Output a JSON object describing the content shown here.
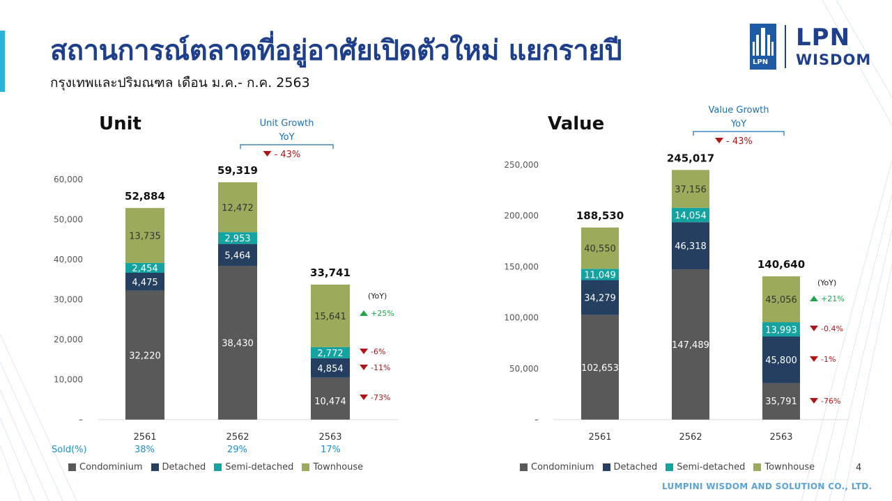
{
  "page": {
    "title": "สถานการณ์ตลาดที่อยู่อาศัยเปิดตัวใหม่ แยกรายปี",
    "subtitle": "กรุงเทพและปริมณฑล เดือน ม.ค.- ก.ค. 2563",
    "logo_tag": "LPN",
    "logo_main": "LPN",
    "logo_sub": "WISDOM",
    "footer": "LUMPINI WISDOM AND SOLUTION CO., LTD.",
    "page_number": "4",
    "sold_label": "Sold(%)",
    "sold_values": [
      "38%",
      "29%",
      "17%"
    ]
  },
  "colors": {
    "Condominium": "#595959",
    "Detached": "#243f60",
    "Semi-detached": "#13a3a0",
    "Townhouse": "#9bab5b",
    "up": "#1fa64a",
    "down": "#b01515",
    "title": "#1e3f8c",
    "growth": "#1a6fb5"
  },
  "chart_data": [
    {
      "type": "bar",
      "stacked": true,
      "title": "Unit",
      "categories": [
        "2561",
        "2562",
        "2563"
      ],
      "series": [
        {
          "name": "Condominium",
          "values": [
            32220,
            38430,
            10474
          ]
        },
        {
          "name": "Detached",
          "values": [
            4475,
            5464,
            4854
          ]
        },
        {
          "name": "Semi-detached",
          "values": [
            2454,
            2953,
            2772
          ]
        },
        {
          "name": "Townhouse",
          "values": [
            13735,
            12472,
            15641
          ]
        }
      ],
      "value_labels": [
        [
          "32,220",
          "4,475",
          "2,454",
          "13,735"
        ],
        [
          "38,430",
          "5,464",
          "2,953",
          "12,472"
        ],
        [
          "10,474",
          "4,854",
          "2,772",
          "15,641"
        ]
      ],
      "totals": [
        "52,884",
        "59,319",
        "33,741"
      ],
      "ylim": [
        0,
        60000
      ],
      "yticks": [
        "–",
        "10,000",
        "20,000",
        "30,000",
        "40,000",
        "50,000",
        "60,000"
      ],
      "growth_title": "Unit Growth",
      "growth_sub": "YoY",
      "growth_value": "- 43%",
      "yoy_header": "(YoY)",
      "yoy": [
        {
          "series": "Townhouse",
          "text": "+25%",
          "dir": "up"
        },
        {
          "series": "Semi-detached",
          "text": "-6%",
          "dir": "down"
        },
        {
          "series": "Detached",
          "text": "-11%",
          "dir": "down"
        },
        {
          "series": "Condominium",
          "text": "-73%",
          "dir": "down"
        }
      ],
      "legend": [
        "Condominium",
        "Detached",
        "Semi-detached",
        "Townhouse"
      ],
      "legend_position": "bottom",
      "grid": false
    },
    {
      "type": "bar",
      "stacked": true,
      "title": "Value",
      "categories": [
        "2561",
        "2562",
        "2563"
      ],
      "series": [
        {
          "name": "Condominium",
          "values": [
            102653,
            147489,
            35791
          ]
        },
        {
          "name": "Detached",
          "values": [
            34279,
            46318,
            45800
          ]
        },
        {
          "name": "Semi-detached",
          "values": [
            11049,
            14054,
            13993
          ]
        },
        {
          "name": "Townhouse",
          "values": [
            40550,
            37156,
            45056
          ]
        }
      ],
      "value_labels": [
        [
          "102,653",
          "34,279",
          "11,049",
          "40,550"
        ],
        [
          "147,489",
          "46,318",
          "14,054",
          "37,156"
        ],
        [
          "35,791",
          "45,800",
          "13,993",
          "45,056"
        ]
      ],
      "totals": [
        "188,530",
        "245,017",
        "140,640"
      ],
      "ylim": [
        0,
        250000
      ],
      "yticks": [
        "–",
        "50,000",
        "100,000",
        "150,000",
        "200,000",
        "250,000"
      ],
      "growth_title": "Value Growth",
      "growth_sub": "YoY",
      "growth_value": "- 43%",
      "yoy_header": "(YoY)",
      "yoy": [
        {
          "series": "Townhouse",
          "text": "+21%",
          "dir": "up"
        },
        {
          "series": "Semi-detached",
          "text": "-0.4%",
          "dir": "down"
        },
        {
          "series": "Detached",
          "text": "-1%",
          "dir": "down"
        },
        {
          "series": "Condominium",
          "text": "-76%",
          "dir": "down"
        }
      ],
      "legend": [
        "Condominium",
        "Detached",
        "Semi-detached",
        "Townhouse"
      ],
      "legend_position": "bottom",
      "grid": false
    }
  ]
}
